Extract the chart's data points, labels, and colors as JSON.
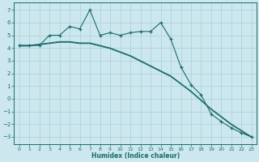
{
  "xlabel": "Humidex (Indice chaleur)",
  "bg_color": "#cce8ee",
  "grid_color": "#aacdd5",
  "line_color": "#1a6b6b",
  "xlim": [
    -0.5,
    23.5
  ],
  "ylim": [
    -3.6,
    7.6
  ],
  "yticks": [
    -3,
    -2,
    -1,
    0,
    1,
    2,
    3,
    4,
    5,
    6,
    7
  ],
  "xticks": [
    0,
    1,
    2,
    3,
    4,
    5,
    6,
    7,
    8,
    9,
    10,
    11,
    12,
    13,
    14,
    15,
    16,
    17,
    18,
    19,
    20,
    21,
    22,
    23
  ],
  "line1_x": [
    0,
    1,
    2,
    3,
    4,
    5,
    6,
    7,
    8,
    9,
    10,
    11,
    12,
    13,
    14,
    15,
    16,
    17,
    18,
    19,
    20,
    21,
    22,
    23
  ],
  "line1_y": [
    4.2,
    4.2,
    4.2,
    5.0,
    5.0,
    5.7,
    5.5,
    7.0,
    5.0,
    5.2,
    5.0,
    5.2,
    5.3,
    5.3,
    6.0,
    4.7,
    2.5,
    1.1,
    0.3,
    -1.2,
    -1.8,
    -2.3,
    -2.7,
    -3.0
  ],
  "line2_x": [
    0,
    1,
    2,
    3,
    4,
    5,
    6,
    7,
    8,
    9,
    10,
    11,
    12,
    13,
    14,
    15,
    16,
    17,
    18,
    19,
    20,
    21,
    22,
    23
  ],
  "line2_y": [
    4.2,
    4.2,
    4.3,
    4.4,
    4.5,
    4.5,
    4.4,
    4.4,
    4.2,
    4.0,
    3.7,
    3.4,
    3.0,
    2.6,
    2.2,
    1.8,
    1.2,
    0.6,
    -0.1,
    -0.8,
    -1.4,
    -2.0,
    -2.5,
    -3.0
  ],
  "line3_x": [
    0,
    1,
    2,
    3,
    4,
    5,
    6,
    7,
    8,
    9,
    10,
    11,
    12,
    13,
    14,
    15,
    16,
    17,
    18,
    19,
    20,
    21,
    22,
    23
  ],
  "line3_y": [
    4.15,
    4.15,
    4.25,
    4.35,
    4.45,
    4.45,
    4.35,
    4.35,
    4.15,
    3.95,
    3.65,
    3.35,
    2.95,
    2.55,
    2.15,
    1.75,
    1.15,
    0.55,
    -0.15,
    -0.85,
    -1.45,
    -2.05,
    -2.55,
    -3.05
  ]
}
